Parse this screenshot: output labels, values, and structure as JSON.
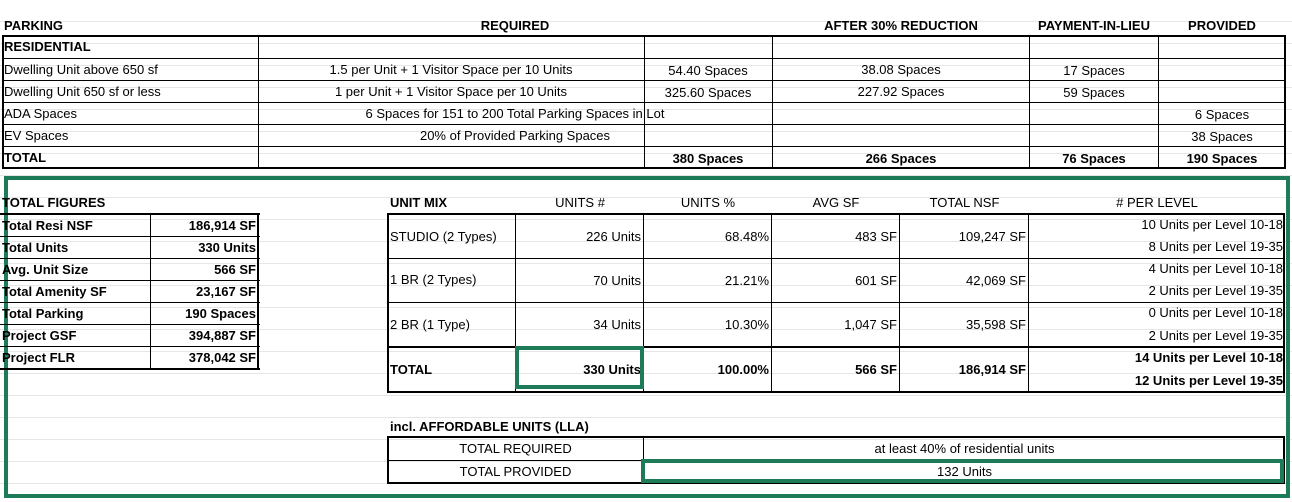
{
  "parking": {
    "headers": {
      "parking": "PARKING",
      "required": "REQUIRED",
      "after": "AFTER 30% REDUCTION",
      "pil": "PAYMENT-IN-LIEU",
      "provided": "PROVIDED"
    },
    "section": "RESIDENTIAL",
    "rows": [
      {
        "label": "Dwelling Unit above 650 sf",
        "rule": "1.5 per Unit + 1 Visitor Space per 10 Units",
        "req": "54.40 Spaces",
        "after": "38.08 Spaces",
        "pil": "17 Spaces",
        "provided": ""
      },
      {
        "label": "Dwelling Unit 650 sf or less",
        "rule": "1 per Unit + 1 Visitor Space per 10 Units",
        "req": "325.60 Spaces",
        "after": "227.92 Spaces",
        "pil": "59 Spaces",
        "provided": ""
      },
      {
        "label": "ADA Spaces",
        "rule": "6 Spaces for 151 to 200 Total Parking Spaces in Lot",
        "req": "",
        "after": "",
        "pil": "",
        "provided": "6 Spaces"
      },
      {
        "label": "EV Spaces",
        "rule": "20% of Provided Parking Spaces",
        "req": "",
        "after": "",
        "pil": "",
        "provided": "38 Spaces"
      }
    ],
    "total": {
      "label": "TOTAL",
      "req": "380 Spaces",
      "after": "266 Spaces",
      "pil": "76 Spaces",
      "provided": "190 Spaces"
    }
  },
  "figures": {
    "title": "TOTAL FIGURES",
    "rows": [
      {
        "label": "Total Resi NSF",
        "value": "186,914 SF"
      },
      {
        "label": "Total Units",
        "value": "330 Units"
      },
      {
        "label": "Avg. Unit Size",
        "value": "566 SF"
      },
      {
        "label": "Total Amenity SF",
        "value": "23,167 SF"
      },
      {
        "label": "Total Parking",
        "value": "190 Spaces"
      },
      {
        "label": "Project GSF",
        "value": "394,887 SF"
      },
      {
        "label": "Project FLR",
        "value": "378,042 SF"
      }
    ]
  },
  "mix": {
    "headers": {
      "unit_mix": "UNIT MIX",
      "units": "UNITS #",
      "pct": "UNITS %",
      "avg": "AVG SF",
      "nsf": "TOTAL NSF",
      "per_level": "# PER LEVEL"
    },
    "rows": [
      {
        "type": "STUDIO (2 Types)",
        "units": "226 Units",
        "pct": "68.48%",
        "avg": "483 SF",
        "nsf": "109,247 SF",
        "lvl1": "10 Units per Level 10-18",
        "lvl2": "8 Units per Level 19-35"
      },
      {
        "type": "1 BR (2 Types)",
        "units": "70 Units",
        "pct": "21.21%",
        "avg": "601 SF",
        "nsf": "42,069 SF",
        "lvl1": "4 Units per Level 10-18",
        "lvl2": "2 Units per Level 19-35"
      },
      {
        "type": "2 BR (1 Type)",
        "units": "34 Units",
        "pct": "10.30%",
        "avg": "1,047 SF",
        "nsf": "35,598 SF",
        "lvl1": "0 Units per Level 10-18",
        "lvl2": "2 Units per Level 19-35"
      }
    ],
    "total": {
      "type": "TOTAL",
      "units": "330 Units",
      "pct": "100.00%",
      "avg": "566 SF",
      "nsf": "186,914 SF",
      "lvl1": "14 Units per Level 10-18",
      "lvl2": "12 Units per Level 19-35"
    }
  },
  "affordable": {
    "title": "incl. AFFORDABLE UNITS (LLA)",
    "required_label": "TOTAL REQUIRED",
    "required_value": "at least 40% of residential units",
    "provided_label": "TOTAL PROVIDED",
    "provided_value": "132 Units"
  },
  "colors": {
    "accent_green": "#1e7b57"
  }
}
